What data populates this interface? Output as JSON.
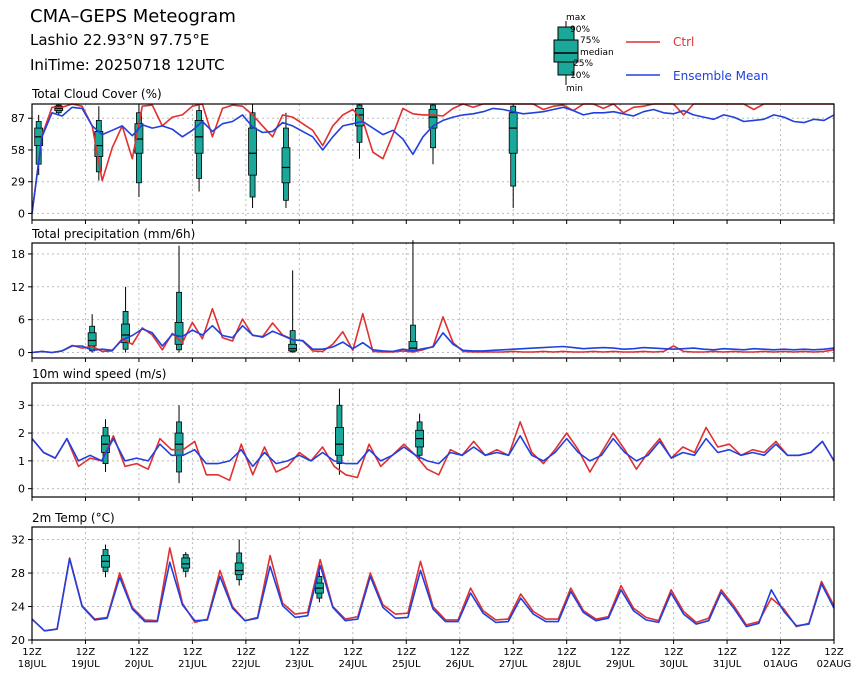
{
  "header": {
    "title": "CMA–GEPS Meteogram",
    "station": "Lashio 22.93°N 97.75°E",
    "initime": "IniTime: 20250718 12UTC"
  },
  "legend": {
    "box_labels": [
      "max",
      "90%",
      "75%",
      "median",
      "25%",
      "10%",
      "min"
    ],
    "ctrl_label": "Ctrl",
    "mean_label": "Ensemble Mean",
    "ctrl_color": "#e03030",
    "mean_color": "#2040e0",
    "box_color": "#1aa89a"
  },
  "x_axis": {
    "hour_label": "12Z",
    "dates": [
      "18JUL",
      "19JUL",
      "20JUL",
      "21JUL",
      "22JUL",
      "23JUL",
      "24JUL",
      "25JUL",
      "26JUL",
      "27JUL",
      "28JUL",
      "29JUL",
      "30JUL",
      "31JUL",
      "01AUG",
      "02AUG"
    ]
  },
  "chart_data": [
    {
      "type": "box-line",
      "title": "Total Cloud Cover (%)",
      "ylim": [
        -6,
        100
      ],
      "yticks": [
        0,
        29,
        58,
        87
      ],
      "grid": true,
      "x": "3-hourly steps from 18JUL 12Z to 02AUG 12Z",
      "series": [
        {
          "name": "Ctrl",
          "values": [
            0,
            71,
            97,
            97,
            100,
            98,
            80,
            30,
            60,
            80,
            50,
            98,
            99,
            80,
            88,
            90,
            98,
            100,
            70,
            96,
            99,
            98,
            90,
            80,
            70,
            90,
            88,
            82,
            76,
            62,
            80,
            90,
            95,
            85,
            56,
            50,
            72,
            96,
            91,
            90,
            90,
            89,
            96,
            100,
            97,
            100,
            100,
            100,
            100,
            100,
            100,
            95,
            98,
            99,
            94,
            100,
            100,
            96,
            100,
            92,
            97,
            98,
            100,
            100,
            100,
            90,
            100,
            100,
            100,
            100,
            100,
            100,
            95,
            100,
            100,
            100,
            100,
            100,
            100,
            100,
            100
          ]
        },
        {
          "name": "Ensemble Mean",
          "values": [
            0,
            70,
            92,
            89,
            97,
            96,
            80,
            72,
            76,
            80,
            71,
            81,
            78,
            80,
            77,
            70,
            76,
            84,
            75,
            82,
            84,
            90,
            79,
            74,
            75,
            83,
            80,
            75,
            70,
            58,
            70,
            80,
            82,
            84,
            78,
            72,
            76,
            68,
            54,
            70,
            80,
            85,
            88,
            90,
            91,
            93,
            96,
            95,
            93,
            91,
            92,
            93,
            95,
            97,
            94,
            90,
            92,
            92,
            93,
            91,
            89,
            93,
            95,
            92,
            91,
            94,
            90,
            88,
            86,
            90,
            88,
            84,
            85,
            86,
            90,
            88,
            84,
            83,
            86,
            85,
            90
          ]
        }
      ],
      "boxes": [
        {
          "x": 1,
          "min": 35,
          "p10": 45,
          "p25": 62,
          "median": 70,
          "p75": 78,
          "p90": 84,
          "max": 90
        },
        {
          "x": 4,
          "min": 90,
          "p10": 92,
          "p25": 94,
          "median": 96,
          "p75": 98,
          "p90": 99,
          "max": 100
        },
        {
          "x": 10,
          "min": 30,
          "p10": 38,
          "p25": 52,
          "median": 62,
          "p75": 75,
          "p90": 85,
          "max": 98
        },
        {
          "x": 16,
          "min": 15,
          "p10": 28,
          "p25": 55,
          "median": 68,
          "p75": 82,
          "p90": 92,
          "max": 100
        },
        {
          "x": 25,
          "min": 20,
          "p10": 32,
          "p25": 55,
          "median": 70,
          "p75": 85,
          "p90": 94,
          "max": 100
        },
        {
          "x": 33,
          "min": 5,
          "p10": 15,
          "p25": 35,
          "median": 55,
          "p75": 78,
          "p90": 92,
          "max": 100
        },
        {
          "x": 38,
          "min": 5,
          "p10": 12,
          "p25": 28,
          "median": 42,
          "p75": 60,
          "p90": 78,
          "max": 92
        },
        {
          "x": 49,
          "min": 50,
          "p10": 65,
          "p25": 80,
          "median": 90,
          "p75": 96,
          "p90": 99,
          "max": 100
        },
        {
          "x": 60,
          "min": 45,
          "p10": 60,
          "p25": 78,
          "median": 88,
          "p75": 95,
          "p90": 99,
          "max": 100
        },
        {
          "x": 72,
          "min": 5,
          "p10": 25,
          "p25": 55,
          "median": 78,
          "p75": 92,
          "p90": 98,
          "max": 100
        }
      ]
    },
    {
      "type": "box-line",
      "title": "Total precipitation (mm/6h)",
      "ylim": [
        -1,
        20
      ],
      "yticks": [
        0,
        6,
        12,
        18
      ],
      "grid": true,
      "x": "3-hourly steps from 18JUL 12Z to 02AUG 12Z",
      "series": [
        {
          "name": "Ctrl",
          "values": [
            0,
            0.2,
            0,
            0.3,
            1.3,
            0.8,
            1.1,
            0.2,
            0.3,
            2.5,
            1.5,
            4.5,
            3.2,
            0.5,
            3.5,
            1.8,
            5.5,
            2.5,
            8,
            2.7,
            2.1,
            6.1,
            3.1,
            2.9,
            5.4,
            3.2,
            2.4,
            2.1,
            0.3,
            0.2,
            1.5,
            3.8,
            0.4,
            7.1,
            0.2,
            0.1,
            0.1,
            0.3,
            0.1,
            0.5,
            1.1,
            6.5,
            1.8,
            0.2,
            0.1,
            0.1,
            0.1,
            0.1,
            0.2,
            0.1,
            0.1,
            0.2,
            0.1,
            0.2,
            0.1,
            0.1,
            0.2,
            0.1,
            0.2,
            0.1,
            0.1,
            0.2,
            0.1,
            0.2,
            1.2,
            0.2,
            0.1,
            0.1,
            0.2,
            0.1,
            0.2,
            0.1,
            0.1,
            0.2,
            0.1,
            0.2,
            0.1,
            0.2,
            0.1,
            0.2,
            0.5
          ]
        },
        {
          "name": "Ensemble Mean",
          "values": [
            0,
            0.2,
            0,
            0.3,
            1.2,
            1.2,
            0.4,
            0.6,
            0.4,
            2.3,
            3.1,
            4.3,
            3.6,
            1.2,
            3.3,
            2.9,
            4.1,
            3.2,
            4.9,
            3.1,
            2.7,
            4.9,
            3.2,
            2.8,
            3.9,
            3.1,
            2.3,
            2.2,
            0.6,
            0.6,
            1.0,
            1.9,
            0.7,
            1.8,
            0.5,
            0.3,
            0.2,
            0.6,
            0.3,
            0.7,
            1.0,
            3.6,
            1.5,
            0.4,
            0.3,
            0.3,
            0.4,
            0.5,
            0.6,
            0.7,
            0.8,
            0.9,
            1.0,
            1.1,
            0.9,
            0.7,
            0.8,
            0.9,
            0.8,
            0.6,
            0.7,
            0.9,
            0.8,
            0.7,
            0.6,
            0.7,
            0.8,
            0.6,
            0.5,
            0.7,
            0.6,
            0.5,
            0.7,
            0.6,
            0.5,
            0.6,
            0.5,
            0.6,
            0.5,
            0.6,
            0.8
          ]
        }
      ],
      "boxes": [
        {
          "x": 9,
          "min": 0,
          "p10": 0.3,
          "p25": 1.2,
          "median": 2.2,
          "p75": 3.6,
          "p90": 4.8,
          "max": 7
        },
        {
          "x": 14,
          "min": 0,
          "p10": 0.6,
          "p25": 1.8,
          "median": 3.2,
          "p75": 5.2,
          "p90": 7.5,
          "max": 12
        },
        {
          "x": 22,
          "min": 0,
          "p10": 0.5,
          "p25": 1.5,
          "median": 3.0,
          "p75": 5.5,
          "p90": 11,
          "max": 19.5
        },
        {
          "x": 39,
          "min": 0,
          "p10": 0.1,
          "p25": 0.3,
          "median": 0.7,
          "p75": 1.5,
          "p90": 4,
          "max": 15
        },
        {
          "x": 57,
          "min": 0,
          "p10": 0.1,
          "p25": 0.3,
          "median": 0.8,
          "p75": 2,
          "p90": 5,
          "max": 20.5
        }
      ]
    },
    {
      "type": "box-line",
      "title": "10m wind speed (m/s)",
      "ylim": [
        -0.3,
        3.8
      ],
      "yticks": [
        0,
        1,
        2,
        3
      ],
      "grid": true,
      "x": "3-hourly steps from 18JUL 12Z to 02AUG 12Z",
      "series": [
        {
          "name": "Ctrl",
          "values": [
            1.8,
            1.3,
            1.1,
            1.8,
            0.8,
            1.1,
            1.0,
            1.9,
            0.8,
            0.9,
            0.7,
            1.8,
            1.4,
            1.4,
            1.7,
            0.5,
            0.5,
            0.3,
            1.6,
            0.5,
            1.5,
            0.6,
            0.8,
            1.3,
            1.0,
            1.5,
            0.8,
            0.5,
            0.4,
            1.6,
            0.8,
            1.2,
            1.6,
            1.2,
            0.7,
            0.5,
            1.4,
            1.2,
            1.7,
            1.2,
            1.4,
            1.2,
            2.4,
            1.3,
            0.9,
            1.4,
            2.0,
            1.4,
            0.6,
            1.3,
            2.0,
            1.4,
            0.7,
            1.3,
            1.8,
            1.1,
            1.5,
            1.3,
            2.2,
            1.5,
            1.6,
            1.2,
            1.4,
            1.3,
            1.7,
            1.2,
            1.2,
            1.3,
            1.7,
            1.0
          ]
        },
        {
          "name": "Ensemble Mean",
          "values": [
            1.8,
            1.3,
            1.1,
            1.8,
            1.0,
            1.2,
            1.0,
            1.8,
            1.0,
            1.1,
            1.0,
            1.6,
            1.2,
            1.2,
            1.4,
            0.9,
            0.9,
            1.0,
            1.4,
            0.8,
            1.3,
            0.9,
            1.0,
            1.2,
            1.0,
            1.3,
            1.0,
            0.9,
            0.9,
            1.4,
            1.0,
            1.2,
            1.5,
            1.2,
            1.0,
            0.9,
            1.3,
            1.2,
            1.5,
            1.2,
            1.3,
            1.2,
            1.9,
            1.2,
            1.0,
            1.3,
            1.8,
            1.3,
            1.0,
            1.2,
            1.8,
            1.3,
            1.0,
            1.2,
            1.7,
            1.1,
            1.3,
            1.2,
            1.8,
            1.3,
            1.4,
            1.2,
            1.3,
            1.2,
            1.6,
            1.2,
            1.2,
            1.3,
            1.7,
            1.0
          ]
        }
      ],
      "boxes": [
        {
          "x": 11,
          "min": 0.6,
          "p10": 0.9,
          "p25": 1.3,
          "median": 1.6,
          "p75": 1.9,
          "p90": 2.2,
          "max": 2.5
        },
        {
          "x": 22,
          "min": 0.2,
          "p10": 0.6,
          "p25": 1.2,
          "median": 1.6,
          "p75": 2.0,
          "p90": 2.4,
          "max": 3.0
        },
        {
          "x": 46,
          "min": 0.5,
          "p10": 0.9,
          "p25": 1.2,
          "median": 1.6,
          "p75": 2.2,
          "p90": 3.0,
          "max": 3.6
        },
        {
          "x": 58,
          "min": 1.0,
          "p10": 1.2,
          "p25": 1.5,
          "median": 1.8,
          "p75": 2.1,
          "p90": 2.4,
          "max": 2.7
        }
      ]
    },
    {
      "type": "box-line",
      "title": "2m Temp (°C)",
      "ylim": [
        20,
        33.5
      ],
      "yticks": [
        20,
        24,
        28,
        32
      ],
      "grid": true,
      "x": "3-hourly steps from 18JUL 12Z to 02AUG 12Z",
      "series": [
        {
          "name": "Ctrl",
          "values": [
            22.5,
            21.1,
            21.3,
            29.8,
            24.1,
            22.5,
            22.7,
            28.0,
            23.9,
            22.4,
            22.3,
            31.0,
            24.4,
            22.1,
            22.5,
            28.3,
            24.0,
            22.3,
            22.7,
            30.1,
            24.4,
            23.1,
            23.3,
            29.6,
            24.0,
            22.5,
            22.8,
            28.0,
            24.2,
            23.1,
            23.2,
            29.4,
            24.0,
            22.4,
            22.4,
            26.2,
            23.5,
            22.4,
            22.5,
            25.5,
            23.4,
            22.5,
            22.5,
            26.2,
            23.5,
            22.5,
            22.8,
            26.5,
            23.8,
            22.7,
            22.3,
            26.0,
            23.4,
            22.1,
            22.6,
            26.0,
            24.1,
            21.8,
            22.2,
            25.0,
            23.7,
            21.6,
            22.0,
            27.0,
            24.1
          ]
        },
        {
          "name": "Ensemble Mean",
          "values": [
            22.5,
            21.1,
            21.3,
            29.7,
            24.0,
            22.4,
            22.6,
            27.5,
            23.7,
            22.2,
            22.2,
            29.3,
            24.2,
            22.3,
            22.4,
            27.6,
            23.8,
            22.3,
            22.6,
            28.8,
            24.1,
            22.7,
            22.9,
            28.9,
            23.9,
            22.3,
            22.5,
            27.6,
            23.9,
            22.6,
            22.7,
            28.3,
            23.7,
            22.2,
            22.2,
            25.6,
            23.2,
            22.1,
            22.2,
            25.0,
            23.1,
            22.2,
            22.2,
            25.8,
            23.3,
            22.3,
            22.6,
            26.0,
            23.5,
            22.4,
            22.1,
            25.6,
            23.1,
            21.9,
            22.3,
            25.7,
            23.8,
            21.6,
            22.0,
            26.0,
            23.4,
            21.7,
            21.9,
            26.7,
            23.8
          ]
        }
      ],
      "boxes": [
        {
          "x": 11,
          "min": 27.5,
          "p10": 28.2,
          "p25": 28.7,
          "median": 29.4,
          "p75": 30.1,
          "p90": 30.8,
          "max": 31.4
        },
        {
          "x": 23,
          "min": 27.5,
          "p10": 28.2,
          "p25": 28.6,
          "median": 29.1,
          "p75": 29.8,
          "p90": 30.2,
          "max": 30.5
        },
        {
          "x": 31,
          "min": 26.5,
          "p10": 27.2,
          "p25": 27.8,
          "median": 28.3,
          "p75": 29.2,
          "p90": 30.4,
          "max": 32.0
        },
        {
          "x": 43,
          "min": 24.5,
          "p10": 25.0,
          "p25": 25.6,
          "median": 26.2,
          "p75": 26.8,
          "p90": 27.6,
          "max": 28.2
        }
      ]
    }
  ]
}
